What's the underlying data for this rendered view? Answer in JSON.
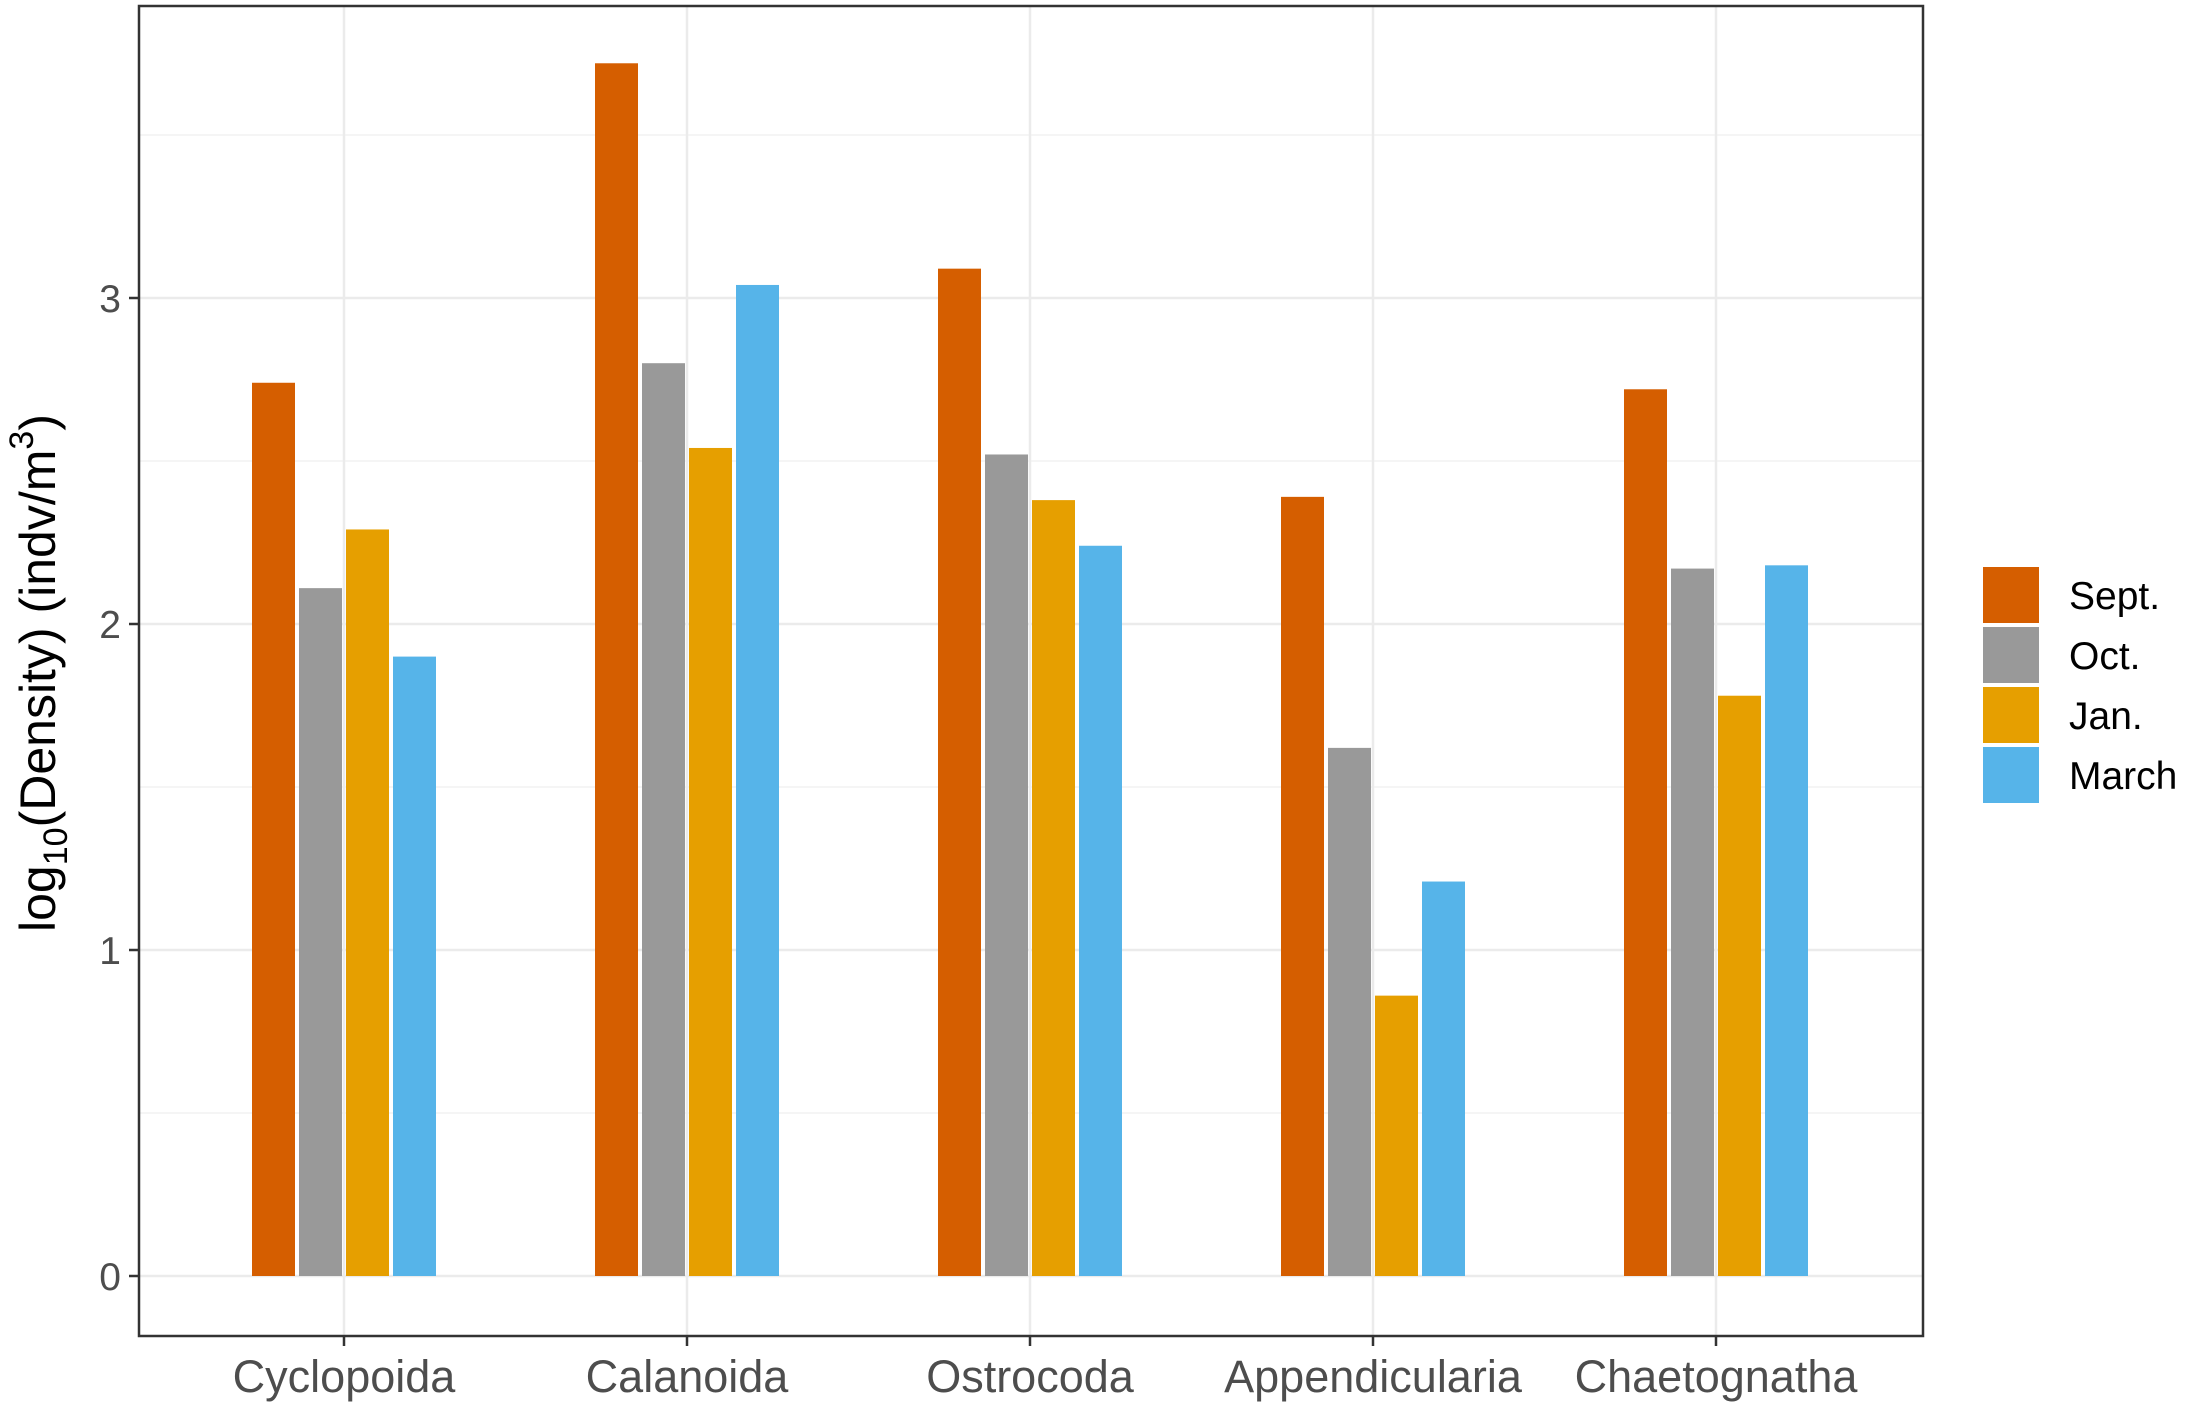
{
  "chart_data": {
    "type": "bar",
    "title": "",
    "xlabel": "",
    "ylabel": {
      "prefix": "log",
      "subscript": "10",
      "middle": "(Density) (indv/m",
      "superscript": "3",
      "suffix": ")"
    },
    "categories": [
      "Cyclopoida",
      "Calanoida",
      "Ostrocoda",
      "Appendicularia",
      "Chaetognatha"
    ],
    "series": [
      {
        "name": "Sept.",
        "color": "#D55E00",
        "values": [
          2.74,
          3.72,
          3.09,
          2.39,
          2.72
        ]
      },
      {
        "name": "Oct.",
        "color": "#999999",
        "values": [
          2.11,
          2.8,
          2.52,
          1.62,
          2.17
        ]
      },
      {
        "name": "Jan.",
        "color": "#E69F00",
        "values": [
          2.29,
          2.54,
          2.38,
          0.86,
          1.78
        ]
      },
      {
        "name": "March",
        "color": "#56B4E9",
        "values": [
          1.9,
          3.04,
          2.24,
          1.21,
          2.18
        ]
      }
    ],
    "yticks": [
      0,
      1,
      2,
      3
    ],
    "ylim": [
      -0.17,
      3.9
    ],
    "grid": true,
    "legend_position": "right"
  }
}
